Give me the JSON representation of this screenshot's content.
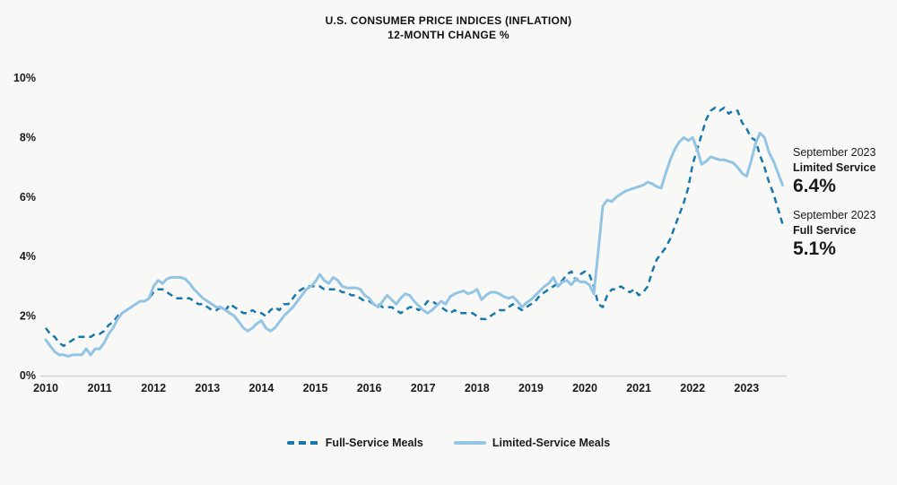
{
  "title": "U.S. CONSUMER PRICE INDICES (INFLATION)",
  "subtitle": "12-MONTH CHANGE %",
  "colors": {
    "full_service": "#1878ac",
    "limited_service": "#94c4e4",
    "axis": "#d4d4d0",
    "text": "#1a1a1a",
    "background": "#f8f8f6"
  },
  "y_axis": {
    "labels": [
      "0%",
      "2%",
      "4%",
      "6%",
      "8%",
      "10%"
    ],
    "values": [
      0,
      2,
      4,
      6,
      8,
      10
    ]
  },
  "x_axis": {
    "labels": [
      "2010",
      "2011",
      "2012",
      "2013",
      "2014",
      "2015",
      "2016",
      "2017",
      "2018",
      "2019",
      "2020",
      "2021",
      "2022",
      "2023"
    ]
  },
  "legend": [
    {
      "label": "Full-Service Meals",
      "style": "dashed"
    },
    {
      "label": "Limited-Service Meals",
      "style": "solid"
    }
  ],
  "annotations": [
    {
      "date_label": "September 2023",
      "service_label": "Limited Service",
      "value": "6.4%"
    },
    {
      "date_label": "September 2023",
      "service_label": "Full Service",
      "value": "5.1%"
    }
  ],
  "chart_data": {
    "type": "line",
    "title": "U.S. CONSUMER PRICE INDICES (INFLATION) — 12-MONTH CHANGE %",
    "x_start": "2010-01",
    "x_end": "2023-09",
    "frequency": "monthly",
    "ylim": [
      0,
      10
    ],
    "grid": false,
    "legend_position": "bottom",
    "series": [
      {
        "name": "Full-Service Meals",
        "style": "dashed",
        "values": [
          1.6,
          1.4,
          1.3,
          1.1,
          1.0,
          1.1,
          1.2,
          1.3,
          1.3,
          1.3,
          1.3,
          1.4,
          1.4,
          1.5,
          1.7,
          1.8,
          2.0,
          2.1,
          2.2,
          2.3,
          2.4,
          2.5,
          2.5,
          2.6,
          2.8,
          2.9,
          2.9,
          2.8,
          2.7,
          2.6,
          2.6,
          2.6,
          2.6,
          2.5,
          2.4,
          2.4,
          2.3,
          2.2,
          2.2,
          2.3,
          2.2,
          2.4,
          2.3,
          2.2,
          2.1,
          2.1,
          2.2,
          2.1,
          2.1,
          2.0,
          2.2,
          2.3,
          2.2,
          2.4,
          2.4,
          2.6,
          2.8,
          2.9,
          3.0,
          3.0,
          3.0,
          3.0,
          2.9,
          2.9,
          2.9,
          2.9,
          2.8,
          2.8,
          2.7,
          2.7,
          2.6,
          2.5,
          2.5,
          2.4,
          2.4,
          2.3,
          2.3,
          2.3,
          2.2,
          2.1,
          2.2,
          2.3,
          2.3,
          2.2,
          2.3,
          2.5,
          2.5,
          2.4,
          2.3,
          2.2,
          2.1,
          2.2,
          2.1,
          2.1,
          2.1,
          2.1,
          2.0,
          1.9,
          1.9,
          2.0,
          2.1,
          2.2,
          2.2,
          2.3,
          2.4,
          2.3,
          2.2,
          2.3,
          2.4,
          2.5,
          2.7,
          2.8,
          2.9,
          3.0,
          3.1,
          3.2,
          3.4,
          3.5,
          3.2,
          3.4,
          3.5,
          3.4,
          3.0,
          2.4,
          2.3,
          2.7,
          2.9,
          2.9,
          3.0,
          2.9,
          2.8,
          2.9,
          2.7,
          2.8,
          3.0,
          3.5,
          3.9,
          4.1,
          4.3,
          4.6,
          5.0,
          5.4,
          5.8,
          6.3,
          7.1,
          7.6,
          8.1,
          8.6,
          8.9,
          9.0,
          8.9,
          9.0,
          8.8,
          8.9,
          8.9,
          8.5,
          8.3,
          8.0,
          7.9,
          7.4,
          7.0,
          6.5,
          6.1,
          5.6,
          5.1
        ]
      },
      {
        "name": "Limited-Service Meals",
        "style": "solid",
        "values": [
          1.2,
          1.0,
          0.8,
          0.7,
          0.7,
          0.65,
          0.7,
          0.7,
          0.7,
          0.9,
          0.7,
          0.9,
          0.9,
          1.1,
          1.4,
          1.6,
          1.9,
          2.1,
          2.2,
          2.3,
          2.4,
          2.5,
          2.5,
          2.6,
          3.0,
          3.2,
          3.1,
          3.25,
          3.3,
          3.3,
          3.3,
          3.25,
          3.1,
          2.9,
          2.75,
          2.6,
          2.5,
          2.4,
          2.3,
          2.3,
          2.2,
          2.1,
          2.0,
          1.8,
          1.6,
          1.5,
          1.6,
          1.75,
          1.85,
          1.6,
          1.5,
          1.6,
          1.8,
          2.0,
          2.15,
          2.3,
          2.5,
          2.7,
          2.9,
          3.0,
          3.15,
          3.4,
          3.2,
          3.1,
          3.3,
          3.2,
          3.0,
          2.95,
          2.95,
          2.95,
          2.9,
          2.7,
          2.6,
          2.4,
          2.3,
          2.5,
          2.7,
          2.55,
          2.4,
          2.6,
          2.75,
          2.7,
          2.5,
          2.35,
          2.2,
          2.1,
          2.2,
          2.35,
          2.5,
          2.4,
          2.65,
          2.75,
          2.8,
          2.85,
          2.75,
          2.8,
          2.9,
          2.55,
          2.7,
          2.8,
          2.8,
          2.75,
          2.65,
          2.6,
          2.65,
          2.5,
          2.3,
          2.45,
          2.55,
          2.7,
          2.85,
          3.0,
          3.1,
          3.3,
          3.0,
          3.15,
          3.2,
          3.05,
          3.25,
          3.15,
          3.15,
          3.05,
          2.75,
          4.2,
          5.7,
          5.9,
          5.85,
          6.0,
          6.1,
          6.2,
          6.25,
          6.3,
          6.35,
          6.4,
          6.5,
          6.45,
          6.35,
          6.3,
          6.8,
          7.25,
          7.6,
          7.85,
          8.0,
          7.9,
          8.0,
          7.6,
          7.1,
          7.2,
          7.35,
          7.3,
          7.25,
          7.25,
          7.2,
          7.15,
          7.0,
          6.8,
          6.7,
          7.2,
          7.8,
          8.15,
          8.0,
          7.5,
          7.2,
          6.8,
          6.4
        ]
      }
    ]
  }
}
